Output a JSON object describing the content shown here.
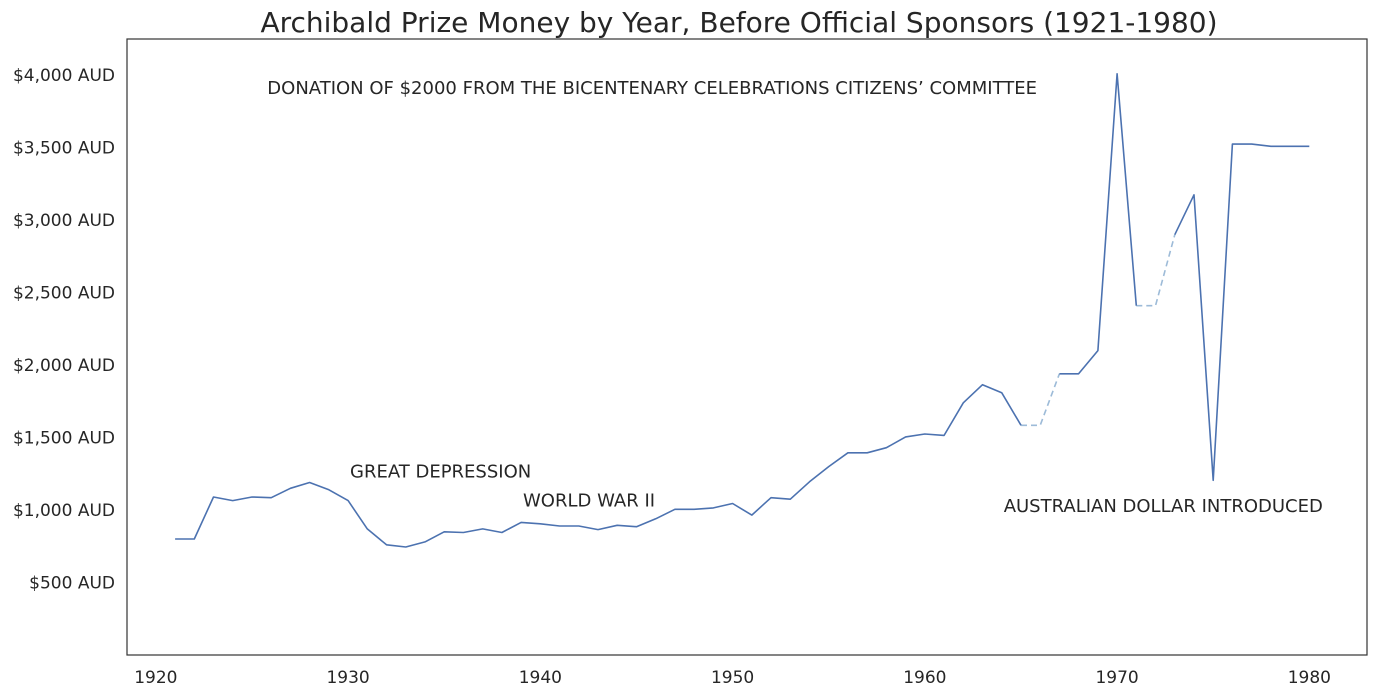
{
  "chart_data": {
    "type": "line",
    "title": "Archibald Prize Money by Year, Before Official Sponsors (1921-1980)",
    "xlabel": "",
    "ylabel": "",
    "xlim": [
      1918.5,
      1983
    ],
    "ylim": [
      0,
      4250
    ],
    "grid": false,
    "x_ticks": [
      "1920",
      "1930",
      "1940",
      "1950",
      "1960",
      "1970",
      "1980"
    ],
    "y_ticks": [
      "$500 AUD",
      "$1,000 AUD",
      "$1,500 AUD",
      "$2,000 AUD",
      "$2,500 AUD",
      "$3,000 AUD",
      "$3,500 AUD",
      "$4,000 AUD"
    ],
    "line_color": "#4c72b0",
    "interpolated_color": "#9dbbd8",
    "series": [
      {
        "x": [
          1921,
          1922,
          1923,
          1924,
          1925,
          1926,
          1927,
          1928,
          1929,
          1930,
          1931,
          1932,
          1933,
          1934,
          1935,
          1936,
          1937,
          1938,
          1939,
          1940,
          1941,
          1942,
          1943,
          1944,
          1945,
          1946,
          1947,
          1948,
          1949,
          1950,
          1951,
          1952,
          1953,
          1954,
          1955,
          1956,
          1957,
          1958,
          1959,
          1960,
          1961,
          1962,
          1963,
          1964,
          1965,
          1966,
          1967,
          1968,
          1969,
          1970,
          1971,
          1972,
          1973,
          1974,
          1975,
          1976,
          1977,
          1978,
          1979,
          1980
        ],
        "values": [
          800,
          800,
          1090,
          1065,
          1090,
          1085,
          1150,
          1190,
          1140,
          1065,
          870,
          760,
          745,
          780,
          850,
          845,
          870,
          845,
          915,
          905,
          890,
          890,
          865,
          895,
          885,
          940,
          1005,
          1005,
          1015,
          1045,
          965,
          1085,
          1075,
          1195,
          1300,
          1395,
          1395,
          1430,
          1505,
          1525,
          1515,
          1740,
          1865,
          1810,
          1585,
          1585,
          1940,
          1940,
          2100,
          4010,
          2410,
          2410,
          2900,
          3175,
          1205,
          3525,
          3525,
          3510,
          3510,
          3510
        ]
      }
    ],
    "interpolated_segments": [
      [
        1965,
        1966,
        1967
      ],
      [
        1971,
        1972,
        1973
      ]
    ],
    "annotations": [
      {
        "text": "DONATION OF $2000 FROM THE  BICENTENARY CELEBRATIONS  CITIZENS’ COMMITTEE",
        "x": 1925.8,
        "y": 3870
      },
      {
        "text": "GREAT  DEPRESSION",
        "x": 1930.1,
        "y": 1225
      },
      {
        "text": "WORLD  WAR II",
        "x": 1939.1,
        "y": 1025
      },
      {
        "text": "AUSTRALIAN  DOLLAR  INTRODUCED",
        "x": 1964.1,
        "y": 985
      }
    ]
  }
}
